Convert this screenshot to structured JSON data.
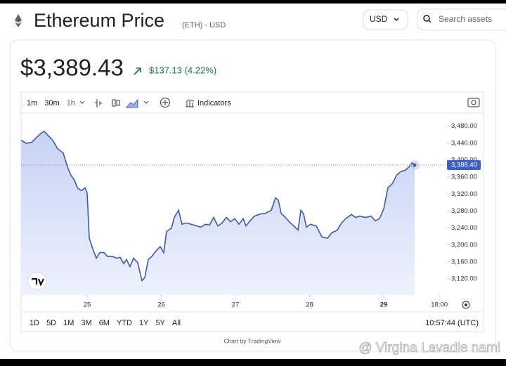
{
  "header": {
    "title": "Ethereum Price",
    "ticker": "(ETH) - USD",
    "currency": "USD",
    "search_placeholder": "Search assets"
  },
  "price": {
    "current": "$3,389.43",
    "change": "$137.13 (4.22%)"
  },
  "toolbar": {
    "intervals": [
      "1m",
      "30m",
      "1h"
    ],
    "indicators": "Indicators"
  },
  "footer": {
    "ranges": [
      "1D",
      "5D",
      "1M",
      "3M",
      "6M",
      "YTD",
      "1Y",
      "5Y",
      "All"
    ],
    "time": "10:57:44 (UTC)",
    "credit": "Chart by TradingView",
    "watermark": "@ Virgina Lavadie nami"
  },
  "chart_data": {
    "type": "area",
    "color": "#3f5aa8",
    "x": [
      24.109,
      24.175,
      24.251,
      24.318,
      24.374,
      24.422,
      24.469,
      24.536,
      24.602,
      24.678,
      24.735,
      24.782,
      24.829,
      24.867,
      24.924,
      24.972,
      25.0,
      25.028,
      25.076,
      25.123,
      25.171,
      25.227,
      25.275,
      25.341,
      25.398,
      25.445,
      25.493,
      25.531,
      25.578,
      25.626,
      25.682,
      25.739,
      25.777,
      25.825,
      25.872,
      25.929,
      25.986,
      26.033,
      26.071,
      26.137,
      26.175,
      26.232,
      26.28,
      26.336,
      26.403,
      26.479,
      26.536,
      26.592,
      26.649,
      26.706,
      26.763,
      26.82,
      26.877,
      26.934,
      26.991,
      27.047,
      27.104,
      27.142,
      27.199,
      27.256,
      27.332,
      27.408,
      27.483,
      27.54,
      27.578,
      27.616,
      27.673,
      27.73,
      27.787,
      27.844,
      27.882,
      27.919,
      27.957,
      28.014,
      28.09,
      28.166,
      28.242,
      28.299,
      28.374,
      28.431,
      28.488,
      28.564,
      28.621,
      28.678,
      28.754,
      28.829,
      28.886,
      28.943,
      29.0,
      29.057,
      29.114,
      29.171,
      29.227,
      29.284,
      29.341,
      29.379,
      29.417
    ],
    "values": [
      3447,
      3440,
      3442,
      3454,
      3463,
      3468,
      3459,
      3447,
      3427,
      3417,
      3384,
      3364,
      3353,
      3335,
      3328,
      3335,
      3323,
      3216,
      3191,
      3169,
      3182,
      3182,
      3173,
      3173,
      3169,
      3171,
      3156,
      3166,
      3149,
      3169,
      3158,
      3116,
      3123,
      3166,
      3173,
      3186,
      3196,
      3182,
      3232,
      3240,
      3265,
      3282,
      3249,
      3252,
      3249,
      3245,
      3242,
      3249,
      3247,
      3265,
      3245,
      3252,
      3265,
      3255,
      3262,
      3249,
      3262,
      3245,
      3257,
      3268,
      3273,
      3275,
      3282,
      3311,
      3306,
      3275,
      3265,
      3254,
      3245,
      3235,
      3282,
      3273,
      3242,
      3249,
      3245,
      3219,
      3216,
      3229,
      3235,
      3252,
      3262,
      3272,
      3265,
      3268,
      3265,
      3268,
      3257,
      3262,
      3285,
      3335,
      3344,
      3364,
      3373,
      3376,
      3384,
      3394,
      3388.4
    ],
    "last_price": {
      "value": 3388.4,
      "label": "3,388.40"
    },
    "xlim": [
      24.109,
      29.815
    ],
    "ylim": [
      3082,
      3511
    ],
    "xticks": [
      25,
      26,
      27,
      28,
      29,
      {
        "value": 29.75,
        "label": "18:00"
      }
    ],
    "yticks": [
      {
        "value": 3120,
        "label": "3,120.00"
      },
      {
        "value": 3160,
        "label": "3,160.00"
      },
      {
        "value": 3200,
        "label": "3,200.00"
      },
      {
        "value": 3240,
        "label": "3,240.00"
      },
      {
        "value": 3280,
        "label": "3,280.00"
      },
      {
        "value": 3320,
        "label": "3,320.00"
      },
      {
        "value": 3360,
        "label": "3,360.00"
      },
      {
        "value": 3400,
        "label": "3,400.00"
      },
      {
        "value": 3440,
        "label": "3,440.00"
      },
      {
        "value": 3480,
        "label": "3,480.00"
      }
    ]
  }
}
